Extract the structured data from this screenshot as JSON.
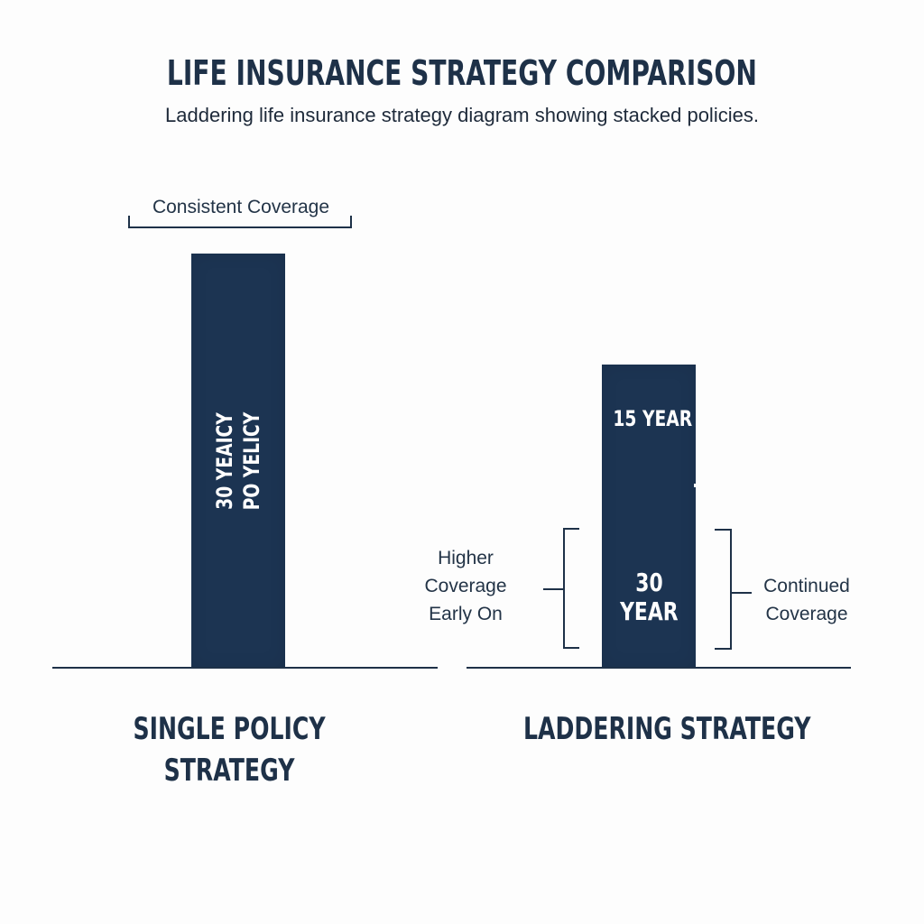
{
  "header": {
    "title": "LIFE INSURANCE STRATEGY COMPARISON",
    "subtitle": "Laddering life insurance strategy diagram showing stacked policies."
  },
  "colors": {
    "bar": "#1c3452",
    "text": "#1e3148",
    "background": "#fdfdfd",
    "bar_text": "#ffffff"
  },
  "single_policy": {
    "bracket_label": "Consistent Coverage",
    "bar_text_line1": "30 YEAICY",
    "bar_text_line2": "PO YELICY",
    "caption_line1": "SINGLE POLICY",
    "caption_line2": "STRATEGY"
  },
  "laddering": {
    "top_policy_label": "15 YEAR",
    "bottom_policy_label_line1": "30",
    "bottom_policy_label_line2": "YEAR",
    "left_annotation": [
      "Higher",
      "Coverage",
      "Early On"
    ],
    "right_annotation": [
      "Continued",
      "Coverage"
    ],
    "caption": "LADDERING STRATEGY"
  }
}
